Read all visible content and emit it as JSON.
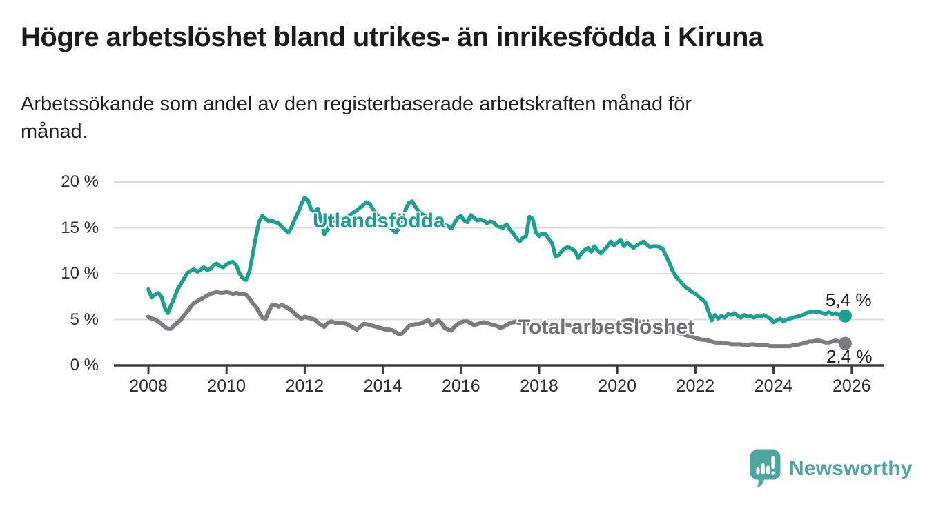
{
  "title": "Högre arbetslöshet bland utrikes- än inrikesfödda i Kiruna",
  "subtitle": {
    "line1": "Arbetssökande som andel av den registerbaserade arbetskraften månad för",
    "line2": "månad."
  },
  "branding": {
    "name": "Newsworthy",
    "logo_icon": "speech-bubble-bar-chart-icon",
    "color": "#4ea6a1"
  },
  "colors": {
    "foreign_born_line": "#16a191",
    "total_line": "#7b7b80",
    "grid": "#dcdcdc",
    "axis": "#3c3c3c",
    "text": "#1f1f1f"
  },
  "chart_data": {
    "type": "line",
    "title": "Högre arbetslöshet bland utrikes- än inrikesfödda i Kiruna",
    "subtitle": "Arbetssökande som andel av den registerbaserade arbetskraften månad för månad.",
    "grid": "horizontal",
    "legend": "inline-labels",
    "x_axis": {
      "ticks": [
        2008,
        2010,
        2012,
        2014,
        2016,
        2018,
        2020,
        2022,
        2024,
        2026
      ],
      "tick_labels": [
        "2008",
        "2010",
        "2012",
        "2014",
        "2016",
        "2018",
        "2020",
        "2022",
        "2024",
        "2026"
      ],
      "range": [
        2007.8,
        2026.8
      ]
    },
    "y_axis": {
      "ticks": [
        0,
        5,
        10,
        15,
        20
      ],
      "tick_labels": [
        "0 %",
        "5 %",
        "10 %",
        "15 %",
        "20 %"
      ],
      "range": [
        0,
        20
      ],
      "unit": "%"
    },
    "series": [
      {
        "name": "Utlandsfödda",
        "color": "#16a191",
        "end_label": "5,4 %",
        "end_value": 5.4,
        "start_year": 2008,
        "points_per_year": 12,
        "values": [
          8.3,
          7.4,
          7.7,
          7.9,
          7.5,
          6.3,
          5.7,
          6.6,
          7.4,
          8.3,
          8.9,
          9.5,
          10.1,
          10.3,
          10.5,
          10.2,
          10.4,
          10.7,
          10.4,
          10.5,
          10.9,
          11.1,
          10.8,
          10.7,
          11.0,
          11.2,
          11.3,
          10.9,
          10.0,
          9.5,
          9.3,
          10.2,
          12.0,
          14.0,
          15.7,
          16.3,
          16.0,
          15.7,
          15.8,
          15.6,
          15.5,
          15.1,
          14.8,
          14.5,
          15.1,
          16.0,
          16.7,
          17.6,
          18.3,
          18.0,
          17.0,
          16.7,
          17.1,
          15.8,
          14.3,
          14.8,
          15.4,
          15.9,
          16.2,
          16.0,
          15.8,
          16.1,
          16.4,
          16.7,
          16.9,
          17.2,
          17.5,
          17.8,
          17.6,
          17.0,
          16.5,
          16.1,
          15.8,
          15.5,
          15.1,
          14.8,
          14.5,
          15.0,
          16.0,
          17.0,
          17.7,
          17.9,
          17.3,
          16.8,
          16.5,
          16.3,
          16.0,
          15.8,
          15.6,
          15.5,
          15.4,
          15.3,
          15.2,
          14.9,
          15.5,
          16.1,
          16.3,
          15.8,
          15.6,
          16.4,
          16.1,
          15.8,
          15.9,
          15.8,
          15.5,
          15.7,
          15.6,
          15.2,
          15.1,
          15.0,
          15.4,
          14.8,
          14.4,
          13.9,
          13.5,
          13.9,
          14.1,
          16.2,
          16.0,
          14.5,
          14.1,
          14.4,
          14.3,
          13.8,
          13.3,
          11.9,
          12.0,
          12.5,
          12.8,
          12.9,
          12.7,
          12.5,
          11.7,
          12.2,
          12.6,
          12.8,
          12.4,
          13.0,
          12.5,
          12.2,
          12.6,
          13.0,
          13.5,
          13.1,
          13.4,
          13.7,
          13.0,
          13.4,
          13.1,
          12.8,
          13.1,
          13.3,
          13.5,
          13.2,
          12.9,
          13.0,
          13.0,
          12.9,
          12.7,
          11.9,
          11.2,
          10.3,
          9.7,
          9.3,
          8.9,
          8.5,
          8.3,
          8.0,
          7.8,
          7.5,
          7.2,
          6.9,
          5.9,
          4.9,
          5.5,
          5.1,
          5.4,
          5.2,
          5.6,
          5.5,
          5.7,
          5.4,
          5.2,
          5.5,
          5.3,
          5.4,
          5.2,
          5.4,
          5.3,
          5.5,
          5.3,
          5.1,
          4.7,
          4.9,
          5.1,
          4.8,
          5.0,
          5.1,
          5.2,
          5.3,
          5.4,
          5.5,
          5.7,
          5.8,
          5.9,
          5.8,
          5.9,
          5.7,
          5.6,
          5.8,
          5.6,
          5.7,
          5.5,
          5.4,
          5.4
        ]
      },
      {
        "name": "Total arbetslöshet",
        "color": "#7b7b80",
        "end_label": "2,4 %",
        "end_value": 2.4,
        "start_year": 2008,
        "points_per_year": 12,
        "values": [
          5.3,
          5.1,
          5.0,
          4.8,
          4.5,
          4.2,
          4.0,
          4.0,
          4.4,
          4.7,
          5.0,
          5.5,
          5.9,
          6.4,
          6.8,
          7.0,
          7.2,
          7.4,
          7.6,
          7.8,
          7.9,
          8.0,
          7.9,
          7.9,
          8.0,
          7.9,
          7.8,
          7.9,
          7.8,
          7.8,
          7.7,
          7.3,
          6.8,
          6.4,
          5.8,
          5.2,
          5.1,
          5.9,
          6.6,
          6.6,
          6.4,
          6.6,
          6.4,
          6.2,
          6.0,
          5.6,
          5.3,
          5.1,
          5.3,
          5.2,
          5.1,
          5.0,
          4.7,
          4.4,
          4.2,
          4.6,
          4.8,
          4.7,
          4.6,
          4.6,
          4.6,
          4.5,
          4.3,
          4.1,
          3.9,
          4.2,
          4.5,
          4.5,
          4.4,
          4.3,
          4.2,
          4.1,
          4.0,
          3.9,
          3.9,
          3.8,
          3.6,
          3.4,
          3.5,
          3.9,
          4.3,
          4.4,
          4.5,
          4.5,
          4.6,
          4.8,
          4.9,
          4.4,
          4.6,
          4.9,
          4.6,
          4.1,
          3.9,
          3.8,
          4.2,
          4.5,
          4.7,
          4.8,
          4.8,
          4.6,
          4.4,
          4.5,
          4.6,
          4.7,
          4.6,
          4.5,
          4.4,
          4.3,
          4.1,
          4.2,
          4.4,
          4.6,
          4.7,
          4.8,
          4.6,
          4.6,
          4.5,
          4.6,
          4.5,
          4.4,
          4.5,
          4.6,
          4.5,
          4.4,
          4.3,
          4.2,
          4.3,
          4.4,
          4.5,
          4.4,
          4.3,
          4.4,
          4.3,
          4.2,
          4.3,
          4.4,
          4.3,
          4.2,
          4.1,
          4.2,
          4.3,
          4.4,
          4.3,
          4.4,
          4.5,
          4.6,
          4.8,
          4.9,
          5.0,
          4.9,
          4.8,
          4.7,
          4.6,
          4.5,
          4.4,
          4.3,
          4.2,
          4.1,
          4.0,
          3.9,
          3.8,
          3.7,
          3.6,
          3.5,
          3.4,
          3.3,
          3.2,
          3.1,
          3.0,
          2.9,
          2.8,
          2.8,
          2.7,
          2.6,
          2.5,
          2.5,
          2.4,
          2.4,
          2.4,
          2.3,
          2.3,
          2.3,
          2.3,
          2.2,
          2.2,
          2.3,
          2.3,
          2.2,
          2.2,
          2.2,
          2.2,
          2.1,
          2.1,
          2.1,
          2.1,
          2.1,
          2.1,
          2.1,
          2.2,
          2.2,
          2.3,
          2.4,
          2.5,
          2.6,
          2.6,
          2.7,
          2.7,
          2.6,
          2.5,
          2.5,
          2.6,
          2.7,
          2.6,
          2.5,
          2.4
        ]
      }
    ]
  }
}
